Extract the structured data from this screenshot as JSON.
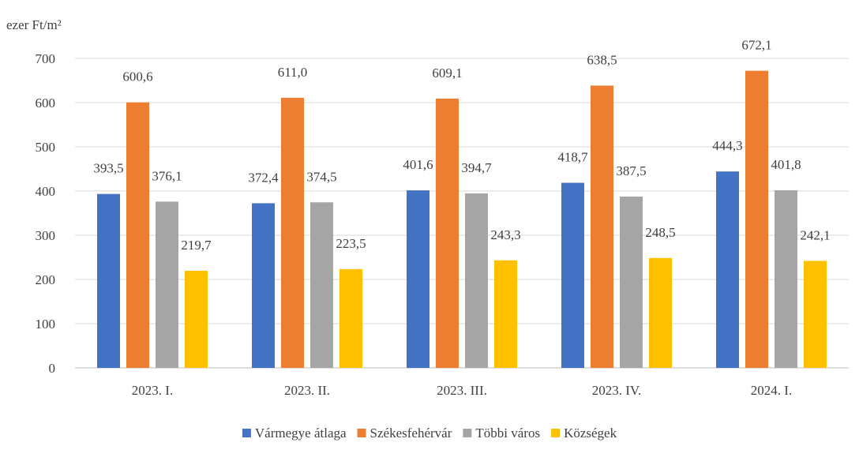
{
  "chart_data": {
    "type": "bar",
    "unit_label": "ezer Ft/m²",
    "categories": [
      "2023. I.",
      "2023. II.",
      "2023. III.",
      "2023. IV.",
      "2024. I."
    ],
    "series": [
      {
        "name": "Vármegye átlaga",
        "color": "#4472C4",
        "values": [
          393.5,
          372.4,
          401.6,
          418.7,
          444.3
        ],
        "labels": [
          "393,5",
          "372,4",
          "401,6",
          "418,7",
          "444,3"
        ]
      },
      {
        "name": "Székesfehérvár",
        "color": "#ED7D31",
        "values": [
          600.6,
          611.0,
          609.1,
          638.5,
          672.1
        ],
        "labels": [
          "600,6",
          "611,0",
          "609,1",
          "638,5",
          "672,1"
        ]
      },
      {
        "name": "Többi város",
        "color": "#A5A5A5",
        "values": [
          376.1,
          374.5,
          394.7,
          387.5,
          401.8
        ],
        "labels": [
          "376,1",
          "374,5",
          "394,7",
          "387,5",
          "401,8"
        ]
      },
      {
        "name": "Községek",
        "color": "#FFC000",
        "values": [
          219.7,
          223.5,
          243.3,
          248.5,
          242.1
        ],
        "labels": [
          "219,7",
          "223,5",
          "243,3",
          "248,5",
          "242,1"
        ]
      }
    ],
    "ylim": [
      0,
      700
    ],
    "yticks": [
      0,
      100,
      200,
      300,
      400,
      500,
      600,
      700
    ],
    "grid": true,
    "legend_position": "bottom"
  }
}
